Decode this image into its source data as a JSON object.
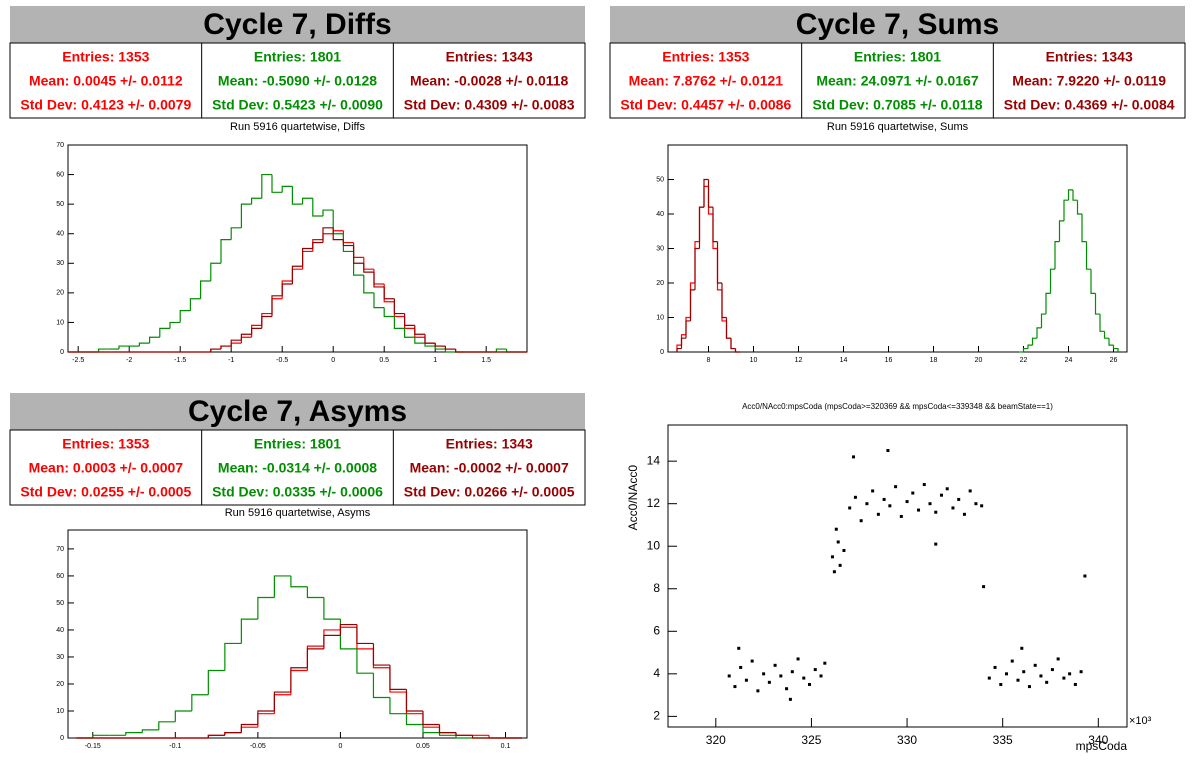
{
  "chart_data": [
    {
      "type": "histogram",
      "title": "Cycle 7, Diffs",
      "subtitle": "Run 5916 quartetwise, Diffs",
      "stats": [
        [
          "Entries: 1353",
          "Mean: 0.0045 +/- 0.0112",
          "Std Dev: 0.4123 +/- 0.0079"
        ],
        [
          "Entries: 1801",
          "Mean: -0.5090 +/- 0.0128",
          "Std Dev: 0.5423 +/- 0.0090"
        ],
        [
          "Entries: 1343",
          "Mean: -0.0028 +/- 0.0118",
          "Std Dev: 0.4309 +/- 0.0083"
        ]
      ],
      "bins": [
        -2.6,
        -2.5,
        -2.4,
        -2.3,
        -2.2,
        -2.1,
        -2.0,
        -1.9,
        -1.8,
        -1.7,
        -1.6,
        -1.5,
        -1.4,
        -1.3,
        -1.2,
        -1.1,
        -1.0,
        -0.9,
        -0.8,
        -0.7,
        -0.6,
        -0.5,
        -0.4,
        -0.3,
        -0.2,
        -0.1,
        0,
        0.1,
        0.2,
        0.3,
        0.4,
        0.5,
        0.6,
        0.7,
        0.8,
        0.9,
        1.0,
        1.1,
        1.2,
        1.3,
        1.4,
        1.5,
        1.6,
        1.7,
        1.8,
        1.9
      ],
      "series": [
        {
          "color": "#ff0000",
          "values": [
            0,
            0,
            0,
            0,
            0,
            0,
            0,
            0,
            0,
            0,
            0,
            0,
            0,
            0,
            1,
            2,
            3,
            5,
            9,
            13,
            18,
            24,
            28,
            34,
            38,
            40,
            41,
            37,
            32,
            28,
            23,
            17,
            12,
            8,
            5,
            3,
            2,
            1,
            0,
            0,
            0,
            0,
            0,
            0,
            0
          ]
        },
        {
          "color": "#008f00",
          "values": [
            0,
            0,
            0,
            1,
            1,
            2,
            2,
            3,
            5,
            8,
            10,
            14,
            18,
            24,
            30,
            38,
            42,
            50,
            52,
            60,
            54,
            56,
            50,
            52,
            46,
            48,
            40,
            34,
            26,
            20,
            15,
            12,
            8,
            5,
            3,
            2,
            1,
            0,
            0,
            0,
            0,
            0,
            1,
            0,
            0
          ]
        },
        {
          "color": "#990000",
          "values": [
            0,
            0,
            0,
            0,
            0,
            0,
            0,
            0,
            0,
            0,
            0,
            0,
            0,
            0,
            1,
            2,
            4,
            6,
            8,
            12,
            19,
            23,
            29,
            35,
            37,
            42,
            38,
            36,
            30,
            27,
            22,
            18,
            13,
            9,
            6,
            3,
            2,
            1,
            0,
            0,
            0,
            0,
            0,
            0,
            0
          ]
        }
      ],
      "xlim": [
        -2.6,
        1.9
      ],
      "xticks": [
        -2.5,
        -2,
        -1.5,
        -1,
        -0.5,
        0,
        0.5,
        1,
        1.5
      ],
      "ylim": [
        0,
        70
      ],
      "yticks": [
        0,
        10,
        20,
        30,
        40,
        50,
        60,
        70
      ]
    },
    {
      "type": "histogram",
      "title": "Cycle 7, Sums",
      "subtitle": "Run 5916 quartetwise, Sums",
      "stats": [
        [
          "Entries: 1353",
          "Mean: 7.8762 +/- 0.0121",
          "Std Dev: 0.4457 +/- 0.0086"
        ],
        [
          "Entries: 1801",
          "Mean: 24.0971 +/- 0.0167",
          "Std Dev: 0.7085 +/- 0.0118"
        ],
        [
          "Entries: 1343",
          "Mean: 7.9220 +/- 0.0119",
          "Std Dev: 0.4369 +/- 0.0084"
        ]
      ],
      "series": [
        {
          "color": "#ff0000",
          "bins": [
            6.6,
            6.8,
            7.0,
            7.2,
            7.4,
            7.6,
            7.8,
            8.0,
            8.2,
            8.4,
            8.6,
            8.8,
            9.0,
            9.2,
            9.4
          ],
          "values": [
            2,
            5,
            10,
            20,
            32,
            42,
            48,
            40,
            30,
            18,
            9,
            4,
            1,
            0
          ]
        },
        {
          "color": "#008f00",
          "bins": [
            21.8,
            22.0,
            22.2,
            22.4,
            22.6,
            22.8,
            23.0,
            23.2,
            23.4,
            23.6,
            23.8,
            24.0,
            24.2,
            24.4,
            24.6,
            24.8,
            25.0,
            25.2,
            25.4,
            25.6,
            25.8,
            26.0,
            26.2
          ],
          "values": [
            0,
            1,
            2,
            4,
            7,
            11,
            17,
            24,
            32,
            38,
            44,
            47,
            44,
            40,
            32,
            24,
            17,
            11,
            6,
            4,
            2,
            1
          ]
        },
        {
          "color": "#990000",
          "bins": [
            6.6,
            6.8,
            7.0,
            7.2,
            7.4,
            7.6,
            7.8,
            8.0,
            8.2,
            8.4,
            8.6,
            8.8,
            9.0,
            9.2,
            9.4
          ],
          "values": [
            1,
            4,
            9,
            18,
            30,
            42,
            50,
            42,
            32,
            20,
            10,
            4,
            1,
            0
          ]
        }
      ],
      "xlim": [
        6.2,
        26.6
      ],
      "xticks": [
        8,
        10,
        12,
        14,
        16,
        18,
        20,
        22,
        24,
        26
      ],
      "ylim": [
        0,
        60
      ],
      "yticks": [
        0,
        10,
        20,
        30,
        40,
        50
      ]
    },
    {
      "type": "histogram",
      "title": "Cycle 7, Asyms",
      "subtitle": "Run 5916 quartetwise, Asyms",
      "stats": [
        [
          "Entries: 1353",
          "Mean: 0.0003 +/- 0.0007",
          "Std Dev: 0.0255 +/- 0.0005"
        ],
        [
          "Entries: 1801",
          "Mean: -0.0314 +/- 0.0008",
          "Std Dev: 0.0335 +/- 0.0006"
        ],
        [
          "Entries: 1343",
          "Mean: -0.0002 +/- 0.0007",
          "Std Dev: 0.0266 +/- 0.0005"
        ]
      ],
      "bins": [
        -0.16,
        -0.15,
        -0.14,
        -0.13,
        -0.12,
        -0.11,
        -0.1,
        -0.09,
        -0.08,
        -0.07,
        -0.06,
        -0.05,
        -0.04,
        -0.03,
        -0.02,
        -0.01,
        0,
        0.01,
        0.02,
        0.03,
        0.04,
        0.05,
        0.06,
        0.07,
        0.08,
        0.09,
        0.1,
        0.11
      ],
      "series": [
        {
          "color": "#ff0000",
          "values": [
            0,
            0,
            0,
            0,
            0,
            0,
            0,
            0,
            1,
            2,
            4,
            9,
            16,
            25,
            34,
            40,
            41,
            33,
            26,
            17,
            9,
            4,
            2,
            1,
            1,
            0,
            0
          ]
        },
        {
          "color": "#008f00",
          "values": [
            0,
            1,
            1,
            2,
            3,
            6,
            10,
            16,
            25,
            35,
            44,
            52,
            60,
            56,
            52,
            44,
            33,
            24,
            15,
            9,
            5,
            2,
            1,
            0,
            0,
            0,
            0
          ]
        },
        {
          "color": "#990000",
          "values": [
            0,
            0,
            0,
            0,
            0,
            0,
            0,
            0,
            1,
            2,
            5,
            10,
            17,
            26,
            33,
            38,
            42,
            35,
            27,
            18,
            10,
            5,
            2,
            1,
            0,
            0,
            0
          ]
        }
      ],
      "xlim": [
        -0.165,
        0.113
      ],
      "xticks": [
        -0.15,
        -0.1,
        -0.05,
        0,
        0.05,
        0.1
      ],
      "ylim": [
        0,
        77
      ],
      "yticks": [
        0,
        10,
        20,
        30,
        40,
        50,
        60,
        70
      ]
    },
    {
      "type": "scatter",
      "title": "Acc0/NAcc0:mpsCoda (mpsCoda>=320369 && mpsCoda<=339348 && beamState==1)",
      "xlabel": "mpsCoda",
      "ylabel": "Acc0/NAcc0",
      "x_multiplier": "×10³",
      "color": "#000000",
      "x": [
        320.7,
        321.0,
        321.3,
        321.6,
        321.9,
        322.2,
        322.5,
        322.8,
        323.1,
        323.4,
        323.7,
        324.0,
        324.3,
        324.6,
        324.9,
        325.2,
        325.5,
        325.7,
        321.2,
        323.9,
        326.1,
        326.2,
        326.4,
        326.5,
        326.7,
        326.3,
        327.0,
        327.3,
        327.6,
        327.9,
        328.2,
        328.5,
        328.8,
        329.1,
        329.4,
        329.7,
        330.0,
        330.3,
        330.6,
        330.9,
        331.2,
        331.5,
        331.8,
        332.1,
        332.4,
        332.7,
        333.0,
        333.3,
        333.6,
        333.9,
        327.2,
        331.5,
        329.0,
        334.3,
        334.6,
        334.9,
        335.2,
        335.5,
        335.8,
        336.1,
        336.4,
        336.7,
        337.0,
        337.3,
        337.6,
        337.9,
        338.2,
        338.5,
        338.8,
        339.1,
        336.0,
        339.3,
        334.0
      ],
      "y": [
        3.9,
        3.4,
        4.3,
        3.7,
        4.6,
        3.2,
        4.0,
        3.6,
        4.4,
        3.9,
        3.3,
        4.1,
        4.7,
        3.8,
        3.5,
        4.2,
        3.9,
        4.5,
        5.2,
        2.8,
        9.5,
        8.8,
        10.2,
        9.1,
        9.8,
        10.8,
        11.8,
        12.3,
        11.2,
        12.0,
        12.6,
        11.5,
        12.2,
        11.9,
        12.8,
        11.4,
        12.1,
        12.5,
        11.7,
        12.9,
        12.0,
        11.6,
        12.4,
        12.7,
        11.8,
        12.2,
        11.5,
        12.6,
        12.0,
        11.9,
        14.2,
        10.1,
        14.5,
        3.8,
        4.3,
        3.5,
        4.0,
        4.6,
        3.7,
        4.1,
        3.4,
        4.4,
        3.9,
        3.6,
        4.2,
        4.7,
        3.8,
        4.0,
        3.5,
        4.1,
        5.2,
        8.6,
        8.1
      ],
      "xlim": [
        317.5,
        341.5
      ],
      "xticks": [
        320,
        325,
        330,
        335,
        340
      ],
      "ylim": [
        1.5,
        15.7
      ],
      "yticks": [
        2,
        4,
        6,
        8,
        10,
        12,
        14
      ]
    }
  ]
}
